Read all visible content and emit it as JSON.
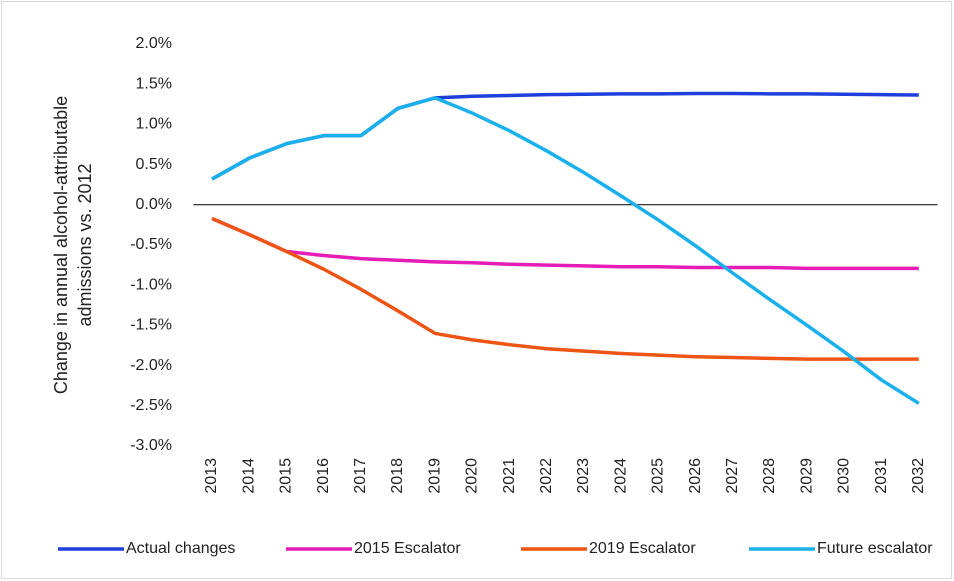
{
  "chart_data": {
    "type": "line",
    "ylabel": [
      "Change in annual alcohol-attributable",
      "admissions vs. 2012"
    ],
    "categories": [
      "2013",
      "2014",
      "2015",
      "2016",
      "2017",
      "2018",
      "2019",
      "2020",
      "2021",
      "2022",
      "2023",
      "2024",
      "2025",
      "2026",
      "2027",
      "2028",
      "2029",
      "2030",
      "2031",
      "2032"
    ],
    "series": [
      {
        "name": "Actual changes",
        "color": "#1f3fdc",
        "values": [
          0.32,
          0.58,
          0.76,
          0.86,
          0.86,
          1.2,
          1.33,
          1.35,
          1.36,
          1.37,
          1.375,
          1.38,
          1.38,
          1.385,
          1.385,
          1.38,
          1.38,
          1.375,
          1.37,
          1.365
        ]
      },
      {
        "name": "2015 Escalator",
        "color": "#e61cb6",
        "values": [
          -0.17,
          -0.37,
          -0.58,
          -0.63,
          -0.67,
          -0.69,
          -0.71,
          -0.72,
          -0.74,
          -0.75,
          -0.76,
          -0.77,
          -0.77,
          -0.78,
          -0.78,
          -0.78,
          -0.79,
          -0.79,
          -0.79,
          -0.79
        ]
      },
      {
        "name": "2019 Escalator",
        "color": "#ee5514",
        "values": [
          -0.17,
          -0.37,
          -0.58,
          -0.8,
          -1.05,
          -1.32,
          -1.6,
          -1.68,
          -1.74,
          -1.79,
          -1.82,
          -1.85,
          -1.87,
          -1.89,
          -1.9,
          -1.91,
          -1.92,
          -1.92,
          -1.92,
          -1.92
        ]
      },
      {
        "name": "Future escalator",
        "color": "#1ab0ec",
        "values": [
          0.32,
          0.58,
          0.76,
          0.86,
          0.86,
          1.2,
          1.33,
          1.14,
          0.92,
          0.67,
          0.4,
          0.11,
          -0.19,
          -0.51,
          -0.85,
          -1.18,
          -1.5,
          -1.83,
          -2.18,
          -2.47
        ]
      }
    ],
    "ylim": [
      -3.0,
      2.0
    ],
    "yticks": [
      {
        "value": 2.0,
        "label": "2.0%"
      },
      {
        "value": 1.5,
        "label": "1.5%"
      },
      {
        "value": 1.0,
        "label": "1.0%"
      },
      {
        "value": 0.5,
        "label": "0.5%"
      },
      {
        "value": 0.0,
        "label": "0.0%"
      },
      {
        "value": -0.5,
        "label": "-0.5%"
      },
      {
        "value": -1.0,
        "label": "-1.0%"
      },
      {
        "value": -1.5,
        "label": "-1.5%"
      },
      {
        "value": -2.0,
        "label": "-2.0%"
      },
      {
        "value": -2.5,
        "label": "-2.5%"
      },
      {
        "value": -3.0,
        "label": "-3.0%"
      }
    ],
    "grid": false,
    "legend": "bottom"
  }
}
